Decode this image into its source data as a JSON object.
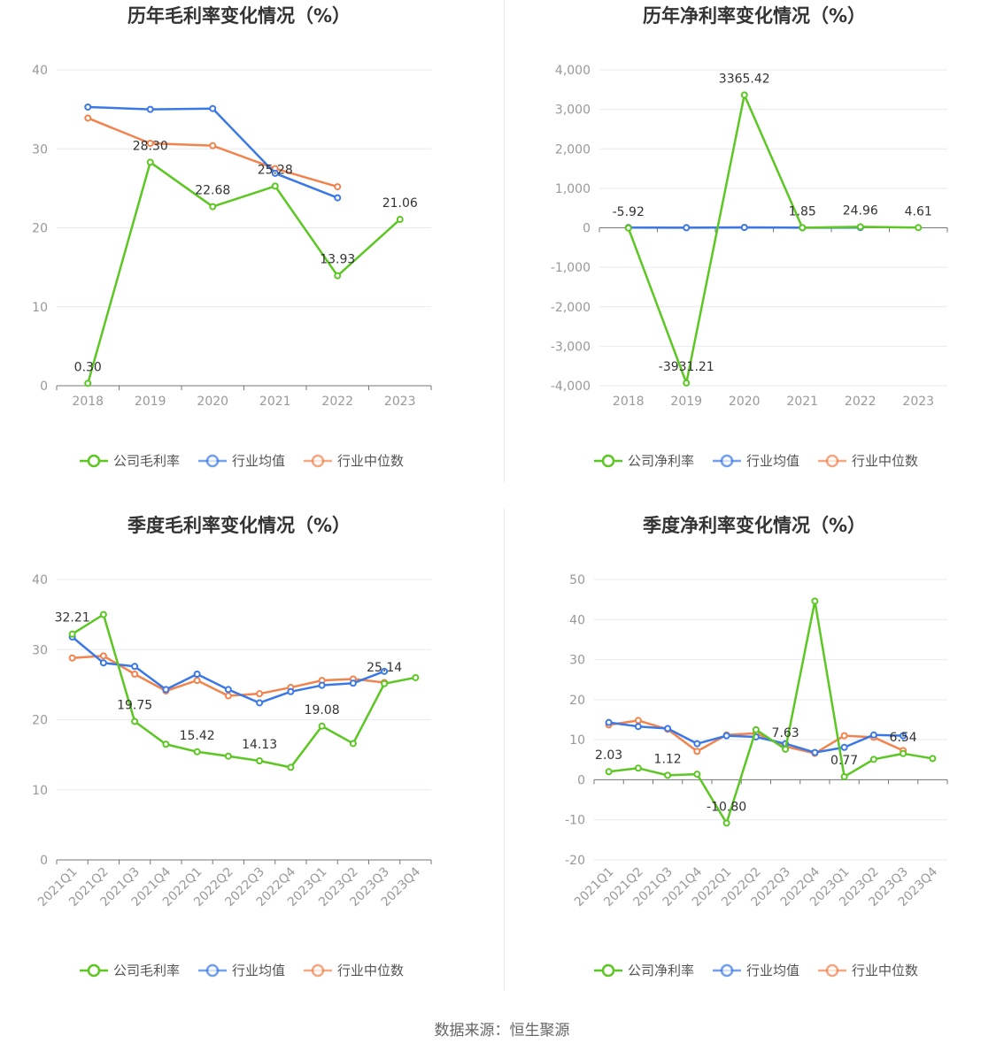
{
  "source_text": "数据来源：恒生聚源",
  "colors": {
    "company": "#5cc723",
    "avg": "#3b78e7",
    "median": "#f2834d",
    "grid": "#e6e9f2",
    "axis": "#777777"
  },
  "chart_data": [
    {
      "type": "line",
      "title": "历年毛利率变化情况（%）",
      "categories": [
        "2018",
        "2019",
        "2020",
        "2021",
        "2022",
        "2023"
      ],
      "ylim": [
        0,
        40
      ],
      "yticks": [
        0,
        10,
        20,
        30,
        40
      ],
      "ytick_labels": [
        "0",
        "10",
        "20",
        "30",
        "40"
      ],
      "xlabel_rotated": false,
      "legend": [
        "公司毛利率",
        "行业均值",
        "行业中位数"
      ],
      "series": [
        {
          "name": "公司毛利率",
          "key": "company",
          "values": [
            0.3,
            28.3,
            22.68,
            25.28,
            13.93,
            21.06
          ],
          "labels": [
            "0.30",
            "28.30",
            "22.68",
            "25.28",
            "13.93",
            "21.06"
          ]
        },
        {
          "name": "行业均值",
          "key": "avg",
          "values": [
            35.3,
            35.0,
            35.1,
            26.9,
            23.8,
            null
          ]
        },
        {
          "name": "行业中位数",
          "key": "median",
          "values": [
            33.9,
            30.7,
            30.4,
            27.5,
            25.2,
            null
          ]
        }
      ]
    },
    {
      "type": "line",
      "title": "历年净利率变化情况（%）",
      "categories": [
        "2018",
        "2019",
        "2020",
        "2021",
        "2022",
        "2023"
      ],
      "ylim": [
        -4000,
        4000
      ],
      "yticks": [
        -4000,
        -3000,
        -2000,
        -1000,
        0,
        1000,
        2000,
        3000,
        4000
      ],
      "ytick_labels": [
        "-4,000",
        "-3,000",
        "-2,000",
        "-1,000",
        "0",
        "1,000",
        "2,000",
        "3,000",
        "4,000"
      ],
      "xlabel_rotated": false,
      "legend": [
        "公司净利率",
        "行业均值",
        "行业中位数"
      ],
      "series": [
        {
          "name": "公司净利率",
          "key": "company",
          "values": [
            -5.92,
            -3931.21,
            3365.42,
            1.85,
            24.96,
            4.61
          ],
          "labels": [
            "-5.92",
            "-3931.21",
            "3365.42",
            "1.85",
            "24.96",
            "4.61"
          ]
        },
        {
          "name": "行业均值",
          "key": "avg",
          "values": [
            5,
            2,
            8,
            3,
            6,
            null
          ]
        },
        {
          "name": "行业中位数",
          "key": "median",
          "values": [
            8,
            5,
            12,
            4,
            9,
            null
          ]
        }
      ]
    },
    {
      "type": "line",
      "title": "季度毛利率变化情况（%）",
      "categories": [
        "2021Q1",
        "2021Q2",
        "2021Q3",
        "2021Q4",
        "2022Q1",
        "2022Q2",
        "2022Q3",
        "2022Q4",
        "2023Q1",
        "2023Q2",
        "2023Q3",
        "2023Q4"
      ],
      "ylim": [
        0,
        40
      ],
      "yticks": [
        0,
        10,
        20,
        30,
        40
      ],
      "ytick_labels": [
        "0",
        "10",
        "20",
        "30",
        "40"
      ],
      "xlabel_rotated": true,
      "legend": [
        "公司毛利率",
        "行业均值",
        "行业中位数"
      ],
      "series": [
        {
          "name": "公司毛利率",
          "key": "company",
          "values": [
            32.21,
            35.0,
            19.75,
            16.5,
            15.42,
            14.8,
            14.13,
            13.2,
            19.08,
            16.6,
            25.14,
            26.0
          ],
          "labels": [
            "32.21",
            "",
            "19.75",
            "",
            "15.42",
            "",
            "14.13",
            "",
            "19.08",
            "",
            "25.14",
            ""
          ]
        },
        {
          "name": "行业均值",
          "key": "avg",
          "values": [
            31.8,
            28.1,
            27.6,
            24.3,
            26.5,
            24.3,
            22.4,
            24.0,
            24.9,
            25.2,
            26.9,
            null
          ]
        },
        {
          "name": "行业中位数",
          "key": "median",
          "values": [
            28.8,
            29.1,
            26.5,
            24.1,
            25.6,
            23.4,
            23.7,
            24.6,
            25.6,
            25.8,
            25.3,
            null
          ]
        }
      ]
    },
    {
      "type": "line",
      "title": "季度净利率变化情况（%）",
      "categories": [
        "2021Q1",
        "2021Q2",
        "2021Q3",
        "2021Q4",
        "2022Q1",
        "2022Q2",
        "2022Q3",
        "2022Q4",
        "2023Q1",
        "2023Q2",
        "2023Q3",
        "2023Q4"
      ],
      "ylim": [
        -20,
        50
      ],
      "yticks": [
        -20,
        -10,
        0,
        10,
        20,
        30,
        40,
        50
      ],
      "ytick_labels": [
        "-20",
        "-10",
        "0",
        "10",
        "20",
        "30",
        "40",
        "50"
      ],
      "xlabel_rotated": true,
      "legend": [
        "公司净利率",
        "行业均值",
        "行业中位数"
      ],
      "series": [
        {
          "name": "公司净利率",
          "key": "company",
          "values": [
            2.03,
            2.9,
            1.12,
            1.4,
            -10.8,
            12.5,
            7.63,
            44.6,
            0.77,
            5.1,
            6.54,
            5.3
          ],
          "labels": [
            "2.03",
            "",
            "1.12",
            "",
            "-10.80",
            "",
            "7.63",
            "",
            "0.77",
            "",
            "6.54",
            ""
          ]
        },
        {
          "name": "行业均值",
          "key": "avg",
          "values": [
            14.3,
            13.3,
            12.8,
            9.0,
            11.0,
            10.7,
            9.0,
            6.8,
            8.1,
            11.2,
            11.0,
            null
          ]
        },
        {
          "name": "行业中位数",
          "key": "median",
          "values": [
            13.7,
            14.8,
            12.6,
            7.1,
            11.2,
            11.6,
            8.3,
            6.6,
            11.0,
            10.6,
            7.3,
            null
          ]
        }
      ]
    }
  ]
}
